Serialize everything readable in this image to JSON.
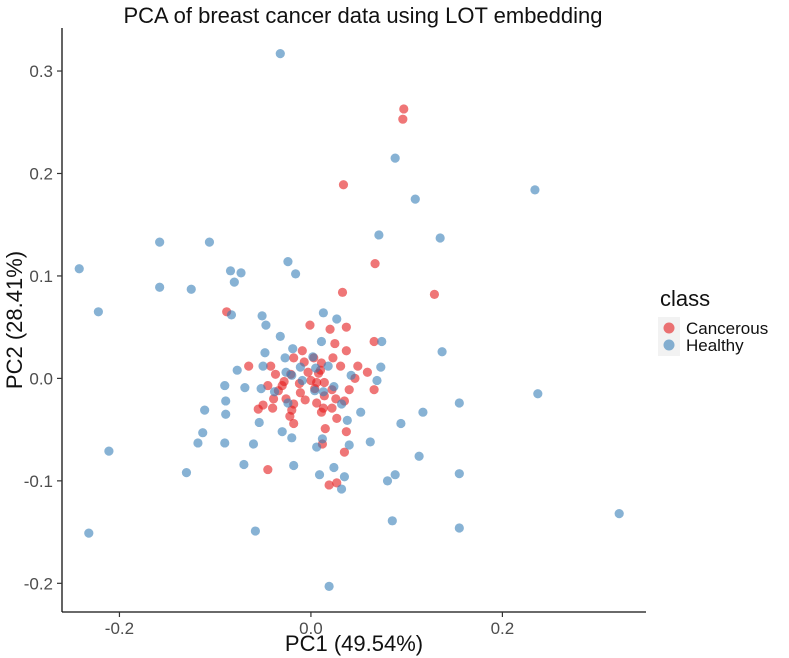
{
  "chart_data": {
    "type": "scatter",
    "title": "PCA of breast cancer data using LOT embedding",
    "xlabel": "PC1 (49.54%)",
    "ylabel": "PC2 (28.41%)",
    "xlim": [
      -0.26,
      0.35
    ],
    "ylim": [
      -0.228,
      0.342
    ],
    "xticks": [
      -0.2,
      0.0,
      0.2
    ],
    "xtick_labels": [
      "-0.2",
      "0.0",
      "0.2"
    ],
    "yticks": [
      -0.2,
      -0.1,
      0.0,
      0.1,
      0.2,
      0.3
    ],
    "ytick_labels": [
      "-0.2",
      "-0.1",
      "0.0",
      "0.1",
      "0.2",
      "0.3"
    ],
    "grid": false,
    "legend": {
      "title": "class",
      "position": "right",
      "entries": [
        {
          "label": "Cancerous",
          "color": "#E41A1C"
        },
        {
          "label": "Healthy",
          "color": "#377EB8"
        }
      ]
    },
    "series": [
      {
        "name": "Cancerous",
        "color": "#E41A1C",
        "points": [
          [
            0.097,
            0.263
          ],
          [
            0.096,
            0.253
          ],
          [
            0.034,
            0.189
          ],
          [
            0.067,
            0.112
          ],
          [
            0.129,
            0.082
          ],
          [
            0.033,
            0.084
          ],
          [
            -0.001,
            0.052
          ],
          [
            -0.088,
            0.065
          ],
          [
            0.037,
            0.05
          ],
          [
            0.02,
            0.048
          ],
          [
            0.025,
            0.034
          ],
          [
            0.037,
            0.027
          ],
          [
            0.066,
            0.036
          ],
          [
            -0.009,
            0.027
          ],
          [
            -0.018,
            0.02
          ],
          [
            -0.007,
            0.016
          ],
          [
            0.003,
            0.02
          ],
          [
            0.011,
            0.015
          ],
          [
            0.01,
            0.008
          ],
          [
            -0.003,
            0.006
          ],
          [
            0.008,
            0.005
          ],
          [
            0.023,
            0.02
          ],
          [
            0.031,
            0.012
          ],
          [
            0.049,
            0.012
          ],
          [
            -0.042,
            0.012
          ],
          [
            -0.065,
            0.012
          ],
          [
            -0.037,
            0.004
          ],
          [
            -0.021,
            0.004
          ],
          [
            0.0,
            -0.002
          ],
          [
            0.006,
            -0.004
          ],
          [
            0.014,
            -0.004
          ],
          [
            -0.012,
            -0.005
          ],
          [
            -0.03,
            -0.007
          ],
          [
            -0.045,
            -0.007
          ],
          [
            -0.034,
            -0.012
          ],
          [
            0.022,
            -0.011
          ],
          [
            0.04,
            -0.011
          ],
          [
            0.059,
            0.006
          ],
          [
            0.066,
            -0.011
          ],
          [
            -0.011,
            -0.014
          ],
          [
            0.004,
            -0.01
          ],
          [
            0.014,
            -0.017
          ],
          [
            -0.039,
            -0.02
          ],
          [
            -0.026,
            -0.02
          ],
          [
            -0.018,
            -0.025
          ],
          [
            0.026,
            -0.02
          ],
          [
            0.035,
            -0.022
          ],
          [
            -0.05,
            -0.026
          ],
          [
            -0.055,
            -0.03
          ],
          [
            -0.04,
            -0.029
          ],
          [
            -0.02,
            -0.031
          ],
          [
            0.006,
            -0.024
          ],
          [
            0.013,
            -0.029
          ],
          [
            0.022,
            -0.029
          ],
          [
            0.011,
            -0.033
          ],
          [
            -0.022,
            -0.037
          ],
          [
            0.027,
            -0.039
          ],
          [
            -0.018,
            -0.044
          ],
          [
            0.015,
            -0.049
          ],
          [
            0.037,
            -0.052
          ],
          [
            0.012,
            -0.064
          ],
          [
            0.035,
            -0.072
          ],
          [
            -0.045,
            -0.089
          ],
          [
            0.019,
            -0.104
          ],
          [
            0.027,
            -0.102
          ],
          [
            -0.028,
            -0.003
          ],
          [
            0.046,
            0.0
          ],
          [
            -0.006,
            -0.021
          ]
        ]
      },
      {
        "name": "Healthy",
        "color": "#377EB8",
        "points": [
          [
            -0.032,
            0.317
          ],
          [
            0.088,
            0.215
          ],
          [
            0.109,
            0.175
          ],
          [
            0.234,
            0.184
          ],
          [
            0.071,
            0.14
          ],
          [
            0.135,
            0.137
          ],
          [
            -0.158,
            0.133
          ],
          [
            -0.106,
            0.133
          ],
          [
            -0.242,
            0.107
          ],
          [
            -0.084,
            0.105
          ],
          [
            -0.073,
            0.103
          ],
          [
            -0.024,
            0.114
          ],
          [
            -0.016,
            0.102
          ],
          [
            -0.08,
            0.094
          ],
          [
            -0.158,
            0.089
          ],
          [
            -0.125,
            0.087
          ],
          [
            -0.222,
            0.065
          ],
          [
            -0.083,
            0.062
          ],
          [
            -0.051,
            0.061
          ],
          [
            0.013,
            0.064
          ],
          [
            0.027,
            0.058
          ],
          [
            -0.047,
            0.052
          ],
          [
            -0.032,
            0.041
          ],
          [
            -0.019,
            0.029
          ],
          [
            0.011,
            0.036
          ],
          [
            0.074,
            0.036
          ],
          [
            0.137,
            0.026
          ],
          [
            -0.048,
            0.025
          ],
          [
            -0.027,
            0.02
          ],
          [
            0.002,
            0.021
          ],
          [
            -0.05,
            0.012
          ],
          [
            0.005,
            0.01
          ],
          [
            0.018,
            0.012
          ],
          [
            0.073,
            0.011
          ],
          [
            -0.077,
            0.008
          ],
          [
            -0.02,
            0.003
          ],
          [
            -0.009,
            -0.002
          ],
          [
            0.042,
            0.003
          ],
          [
            0.069,
            -0.002
          ],
          [
            -0.09,
            -0.007
          ],
          [
            -0.069,
            -0.009
          ],
          [
            -0.052,
            -0.01
          ],
          [
            0.024,
            -0.008
          ],
          [
            0.237,
            -0.015
          ],
          [
            -0.038,
            -0.013
          ],
          [
            0.004,
            -0.012
          ],
          [
            -0.089,
            -0.022
          ],
          [
            -0.024,
            -0.024
          ],
          [
            0.032,
            -0.025
          ],
          [
            0.155,
            -0.024
          ],
          [
            -0.111,
            -0.031
          ],
          [
            -0.089,
            -0.035
          ],
          [
            0.052,
            -0.033
          ],
          [
            0.117,
            -0.033
          ],
          [
            -0.054,
            -0.043
          ],
          [
            0.038,
            -0.041
          ],
          [
            0.094,
            -0.044
          ],
          [
            -0.113,
            -0.053
          ],
          [
            -0.03,
            -0.052
          ],
          [
            -0.02,
            -0.058
          ],
          [
            0.012,
            -0.059
          ],
          [
            0.062,
            -0.062
          ],
          [
            -0.118,
            -0.063
          ],
          [
            -0.06,
            -0.064
          ],
          [
            -0.09,
            -0.063
          ],
          [
            0.006,
            -0.067
          ],
          [
            0.04,
            -0.065
          ],
          [
            0.113,
            -0.076
          ],
          [
            -0.211,
            -0.071
          ],
          [
            -0.07,
            -0.084
          ],
          [
            -0.018,
            -0.085
          ],
          [
            0.024,
            -0.087
          ],
          [
            0.009,
            -0.094
          ],
          [
            -0.13,
            -0.092
          ],
          [
            0.035,
            -0.096
          ],
          [
            0.088,
            -0.094
          ],
          [
            0.155,
            -0.093
          ],
          [
            0.08,
            -0.1
          ],
          [
            0.032,
            -0.108
          ],
          [
            0.085,
            -0.139
          ],
          [
            0.155,
            -0.146
          ],
          [
            -0.058,
            -0.149
          ],
          [
            -0.232,
            -0.151
          ],
          [
            0.322,
            -0.132
          ],
          [
            0.019,
            -0.203
          ],
          [
            -0.026,
            0.006
          ],
          [
            0.013,
            -0.013
          ],
          [
            -0.011,
            0.011
          ]
        ]
      }
    ]
  }
}
